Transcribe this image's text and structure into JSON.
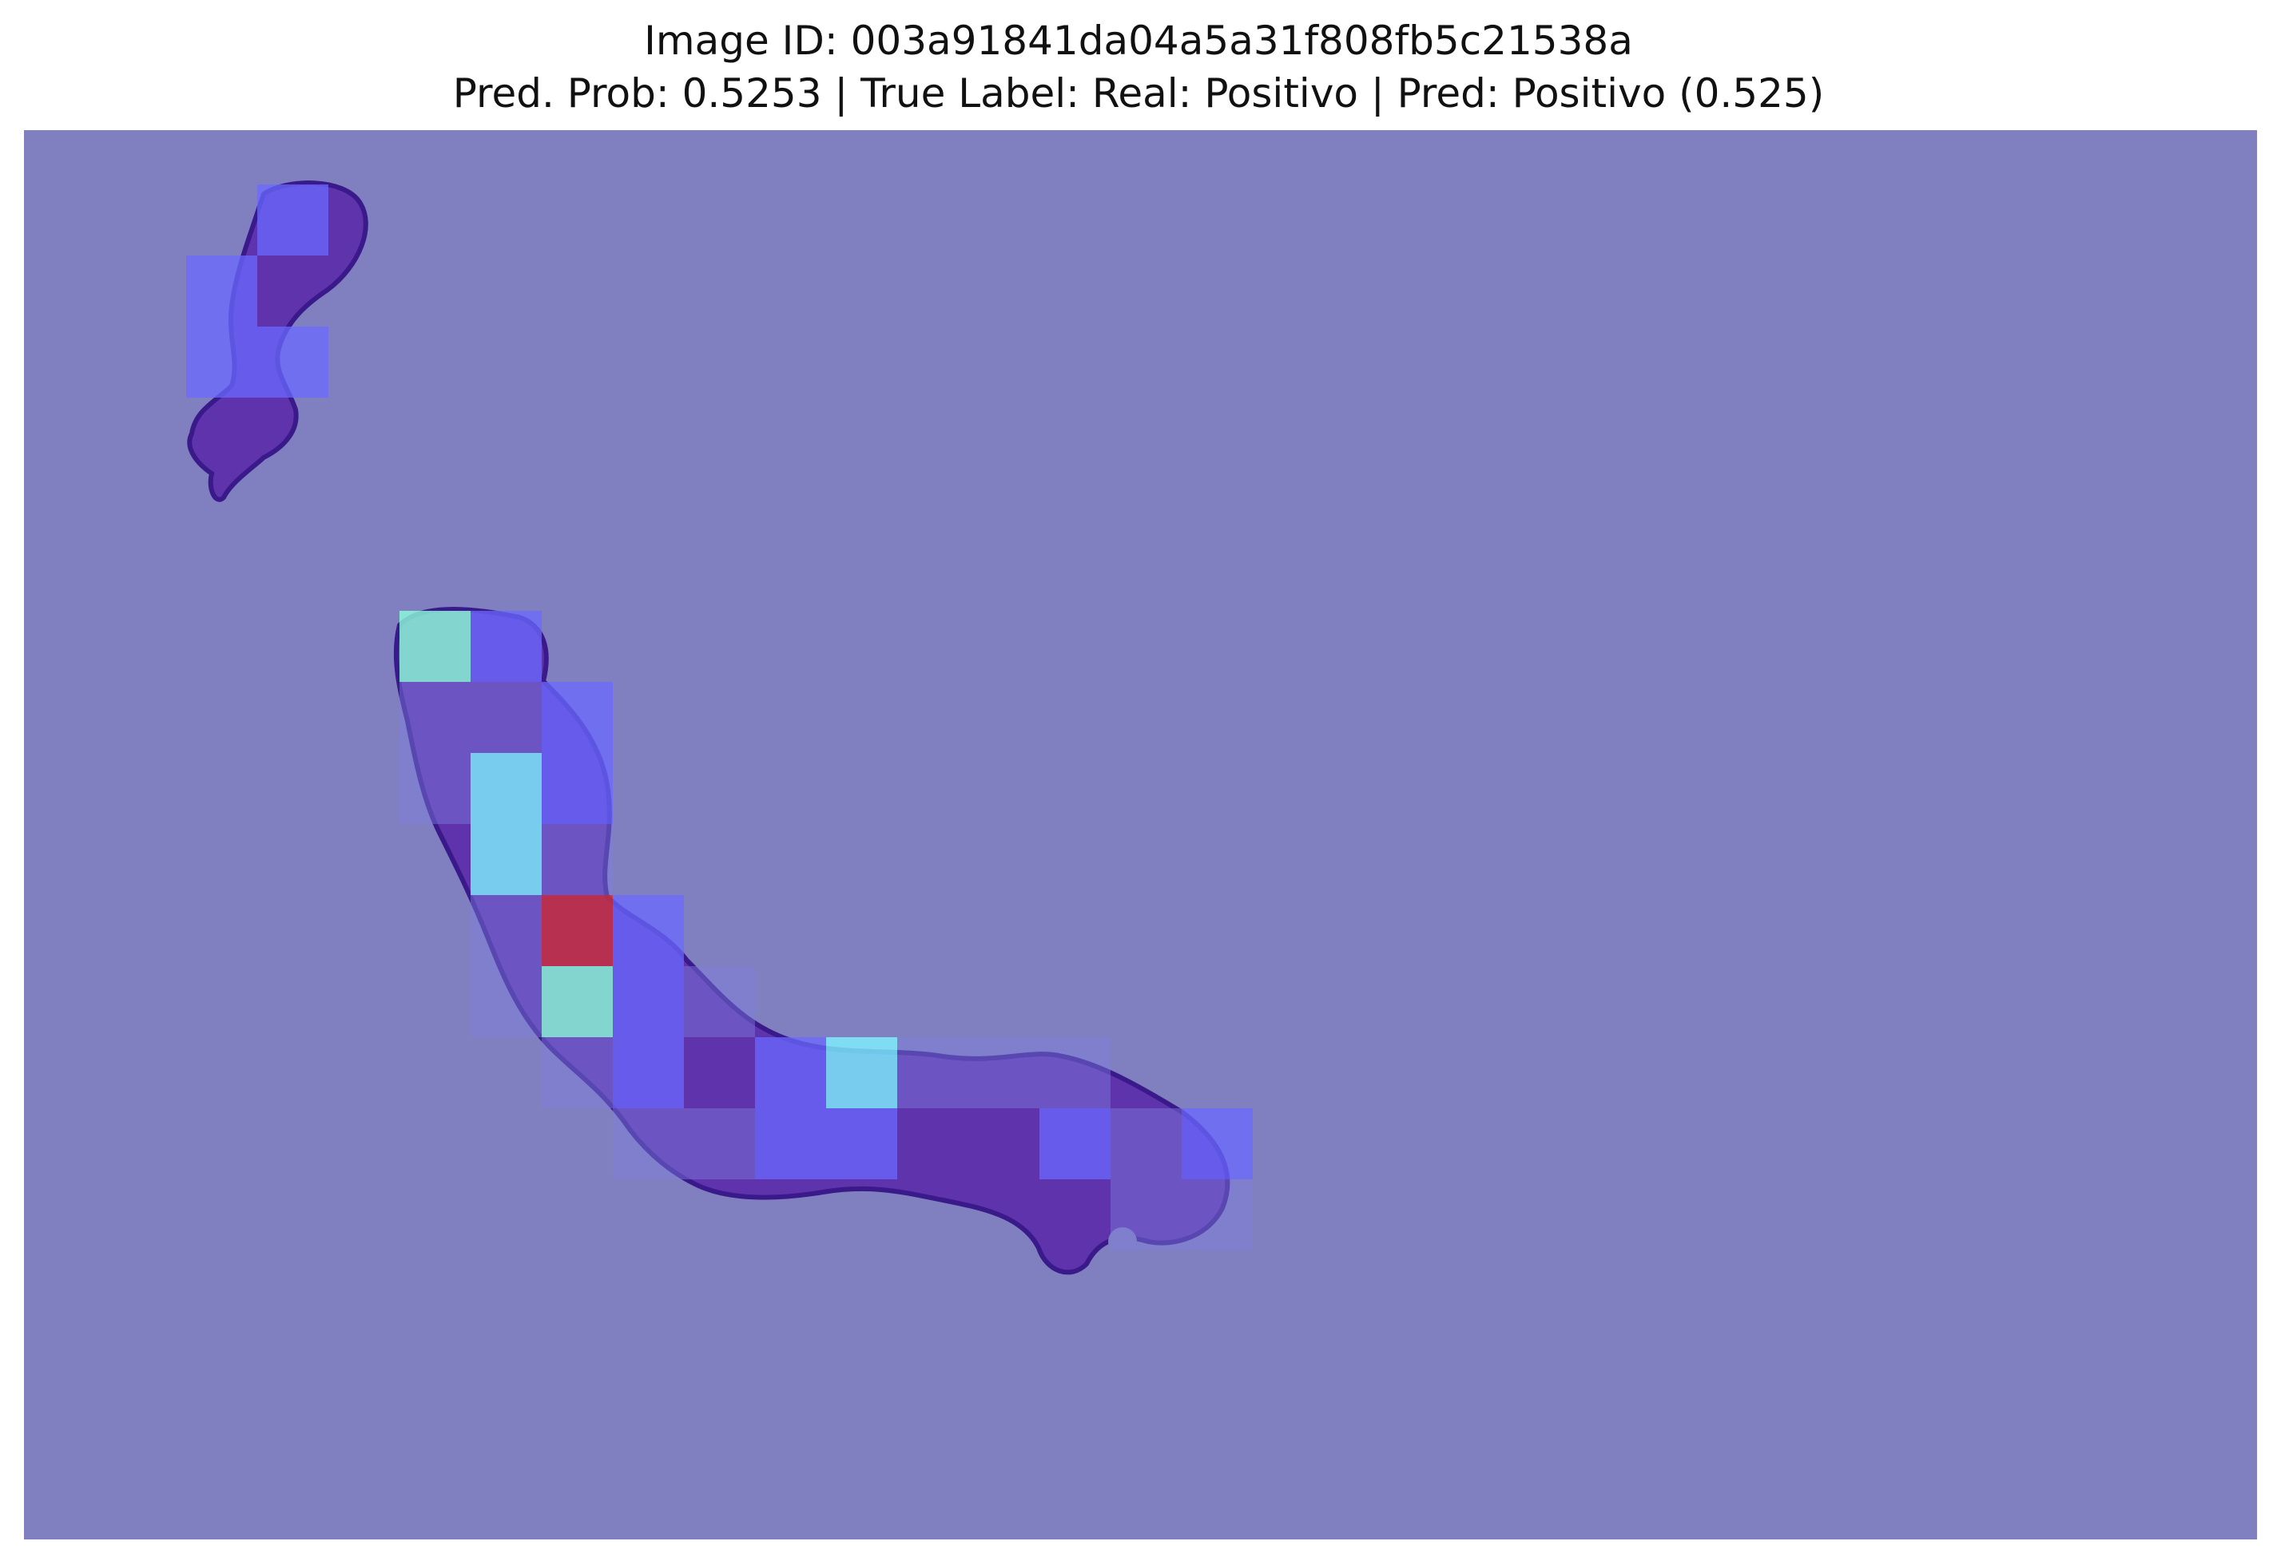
{
  "title": {
    "line1": "Image ID: 003a91841da04a5a31f808fb5c21538a",
    "line2": "Pred. Prob: 0.5253 | True Label: Real: Positivo | Pred: Positivo (0.525)"
  },
  "colors": {
    "background_overlay": "#8080c0",
    "tissue": "#5a2aa8",
    "tissue_dark": "#3a1a8a",
    "patch_low": "#6a6aff",
    "patch_low_dim": "#7f7fe0",
    "patch_mid": "#7ef3ff",
    "patch_mid_green": "#8cffd8",
    "patch_high": "#c83040"
  },
  "heatmap": {
    "type": "attention-overlay",
    "description_icon": "histology-slide",
    "patches": [
      {
        "col": 3,
        "row": 1,
        "level": "low"
      },
      {
        "col": 2,
        "row": 2,
        "level": "low"
      },
      {
        "col": 2,
        "row": 3,
        "level": "low"
      },
      {
        "col": 3,
        "row": 3,
        "level": "low"
      },
      {
        "col": 5,
        "row": 7,
        "level": "mid-green"
      },
      {
        "col": 6,
        "row": 7,
        "level": "low"
      },
      {
        "col": 5,
        "row": 8,
        "level": "low-dim"
      },
      {
        "col": 6,
        "row": 8,
        "level": "low-dim"
      },
      {
        "col": 7,
        "row": 8,
        "level": "low"
      },
      {
        "col": 5,
        "row": 9,
        "level": "low-dim"
      },
      {
        "col": 6,
        "row": 9,
        "level": "mid"
      },
      {
        "col": 7,
        "row": 9,
        "level": "low"
      },
      {
        "col": 6,
        "row": 10,
        "level": "mid"
      },
      {
        "col": 7,
        "row": 10,
        "level": "low-dim"
      },
      {
        "col": 6,
        "row": 11,
        "level": "low-dim"
      },
      {
        "col": 7,
        "row": 11,
        "level": "high"
      },
      {
        "col": 8,
        "row": 11,
        "level": "low"
      },
      {
        "col": 6,
        "row": 12,
        "level": "low-dim"
      },
      {
        "col": 7,
        "row": 12,
        "level": "mid-green"
      },
      {
        "col": 8,
        "row": 12,
        "level": "low"
      },
      {
        "col": 9,
        "row": 12,
        "level": "low-dim"
      },
      {
        "col": 7,
        "row": 13,
        "level": "low-dim"
      },
      {
        "col": 8,
        "row": 13,
        "level": "low"
      },
      {
        "col": 10,
        "row": 13,
        "level": "low"
      },
      {
        "col": 11,
        "row": 13,
        "level": "mid"
      },
      {
        "col": 12,
        "row": 13,
        "level": "low-dim"
      },
      {
        "col": 13,
        "row": 13,
        "level": "low-dim"
      },
      {
        "col": 14,
        "row": 13,
        "level": "low-dim"
      },
      {
        "col": 8,
        "row": 14,
        "level": "low-dim"
      },
      {
        "col": 9,
        "row": 14,
        "level": "low-dim"
      },
      {
        "col": 10,
        "row": 14,
        "level": "low"
      },
      {
        "col": 11,
        "row": 14,
        "level": "low"
      },
      {
        "col": 14,
        "row": 14,
        "level": "low"
      },
      {
        "col": 15,
        "row": 14,
        "level": "low-dim"
      },
      {
        "col": 16,
        "row": 14,
        "level": "low"
      },
      {
        "col": 15,
        "row": 15,
        "level": "low-dim"
      },
      {
        "col": 16,
        "row": 15,
        "level": "low-dim"
      }
    ]
  }
}
